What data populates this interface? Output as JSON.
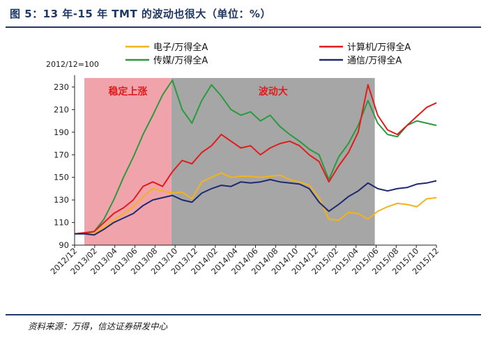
{
  "figure": {
    "title": "图 5：13 年-15 年 TMT 的波动也很大（单位：%）",
    "source": "资料来源：万得，信达证券研发中心"
  },
  "chart_data": {
    "type": "line",
    "index_note": "2012/12=100",
    "xlabel": "",
    "ylabel": "",
    "x_ticks": [
      "2012/12",
      "2013/02",
      "2013/04",
      "2013/06",
      "2013/08",
      "2013/10",
      "2013/12",
      "2014/02",
      "2014/04",
      "2014/06",
      "2014/08",
      "2014/10",
      "2014/12",
      "2015/02",
      "2015/04",
      "2015/06",
      "2015/08",
      "2015/10",
      "2015/12"
    ],
    "y_ticks": [
      90,
      110,
      130,
      150,
      170,
      190,
      210,
      230
    ],
    "ylim": [
      90,
      238
    ],
    "xlim": [
      0,
      37
    ],
    "grid": false,
    "legend_position": "top",
    "regions": [
      {
        "label": "稳定上涨",
        "x_start": 1.0,
        "x_end": 9.9,
        "color": "#f0a3aa"
      },
      {
        "label": "波动大",
        "x_start": 9.9,
        "x_end": 30.7,
        "color": "#a6a6a6"
      }
    ],
    "series": [
      {
        "name": "电子/万得全A",
        "color": "#f2b31c",
        "x": [
          0,
          1,
          2,
          3,
          4,
          5,
          6,
          7,
          8,
          9,
          10,
          11,
          12,
          13,
          14,
          15,
          16,
          17,
          18,
          19,
          20,
          21,
          22,
          23,
          24,
          25,
          26,
          27,
          28,
          29,
          30,
          31,
          32,
          33,
          34,
          35,
          36,
          37
        ],
        "y": [
          100,
          101,
          100,
          106,
          112,
          118,
          124,
          133,
          140,
          138,
          136,
          137,
          131,
          146,
          150,
          154,
          150,
          151,
          151,
          150,
          151,
          152,
          148,
          146,
          143,
          132,
          113,
          112,
          119,
          118,
          113,
          120,
          124,
          127,
          126,
          124,
          131,
          132
        ]
      },
      {
        "name": "计算机/万得全A",
        "color": "#e21b1b",
        "x": [
          0,
          1,
          2,
          3,
          4,
          5,
          6,
          7,
          8,
          9,
          10,
          11,
          12,
          13,
          14,
          15,
          16,
          17,
          18,
          19,
          20,
          21,
          22,
          23,
          24,
          25,
          26,
          27,
          28,
          29,
          30,
          31,
          32,
          33,
          34,
          35,
          36,
          37
        ],
        "y": [
          100,
          101,
          102,
          110,
          118,
          123,
          130,
          142,
          146,
          142,
          155,
          165,
          162,
          172,
          178,
          188,
          182,
          176,
          178,
          170,
          176,
          180,
          182,
          178,
          170,
          164,
          146,
          160,
          172,
          190,
          232,
          205,
          192,
          188,
          196,
          204,
          212,
          216
        ]
      },
      {
        "name": "传媒/万得全A",
        "color": "#2a9a3e",
        "x": [
          0,
          1,
          2,
          3,
          4,
          5,
          6,
          7,
          8,
          9,
          10,
          11,
          12,
          13,
          14,
          15,
          16,
          17,
          18,
          19,
          20,
          21,
          22,
          23,
          24,
          25,
          26,
          27,
          28,
          29,
          30,
          31,
          32,
          33,
          34,
          35,
          36,
          37
        ],
        "y": [
          100,
          100,
          102,
          113,
          130,
          150,
          168,
          188,
          205,
          223,
          236,
          210,
          198,
          218,
          232,
          222,
          210,
          205,
          208,
          200,
          205,
          195,
          188,
          182,
          175,
          170,
          148,
          168,
          180,
          196,
          218,
          198,
          188,
          186,
          196,
          200,
          198,
          196
        ]
      },
      {
        "name": "通信/万得全A",
        "color": "#1f2a6e",
        "x": [
          0,
          1,
          2,
          3,
          4,
          5,
          6,
          7,
          8,
          9,
          10,
          11,
          12,
          13,
          14,
          15,
          16,
          17,
          18,
          19,
          20,
          21,
          22,
          23,
          24,
          25,
          26,
          27,
          28,
          29,
          30,
          31,
          32,
          33,
          34,
          35,
          36,
          37
        ],
        "y": [
          100,
          100,
          99,
          104,
          110,
          114,
          118,
          125,
          130,
          132,
          134,
          130,
          128,
          136,
          140,
          143,
          142,
          146,
          145,
          146,
          148,
          146,
          145,
          144,
          140,
          128,
          120,
          126,
          133,
          138,
          145,
          140,
          138,
          140,
          141,
          144,
          145,
          147
        ]
      }
    ]
  }
}
